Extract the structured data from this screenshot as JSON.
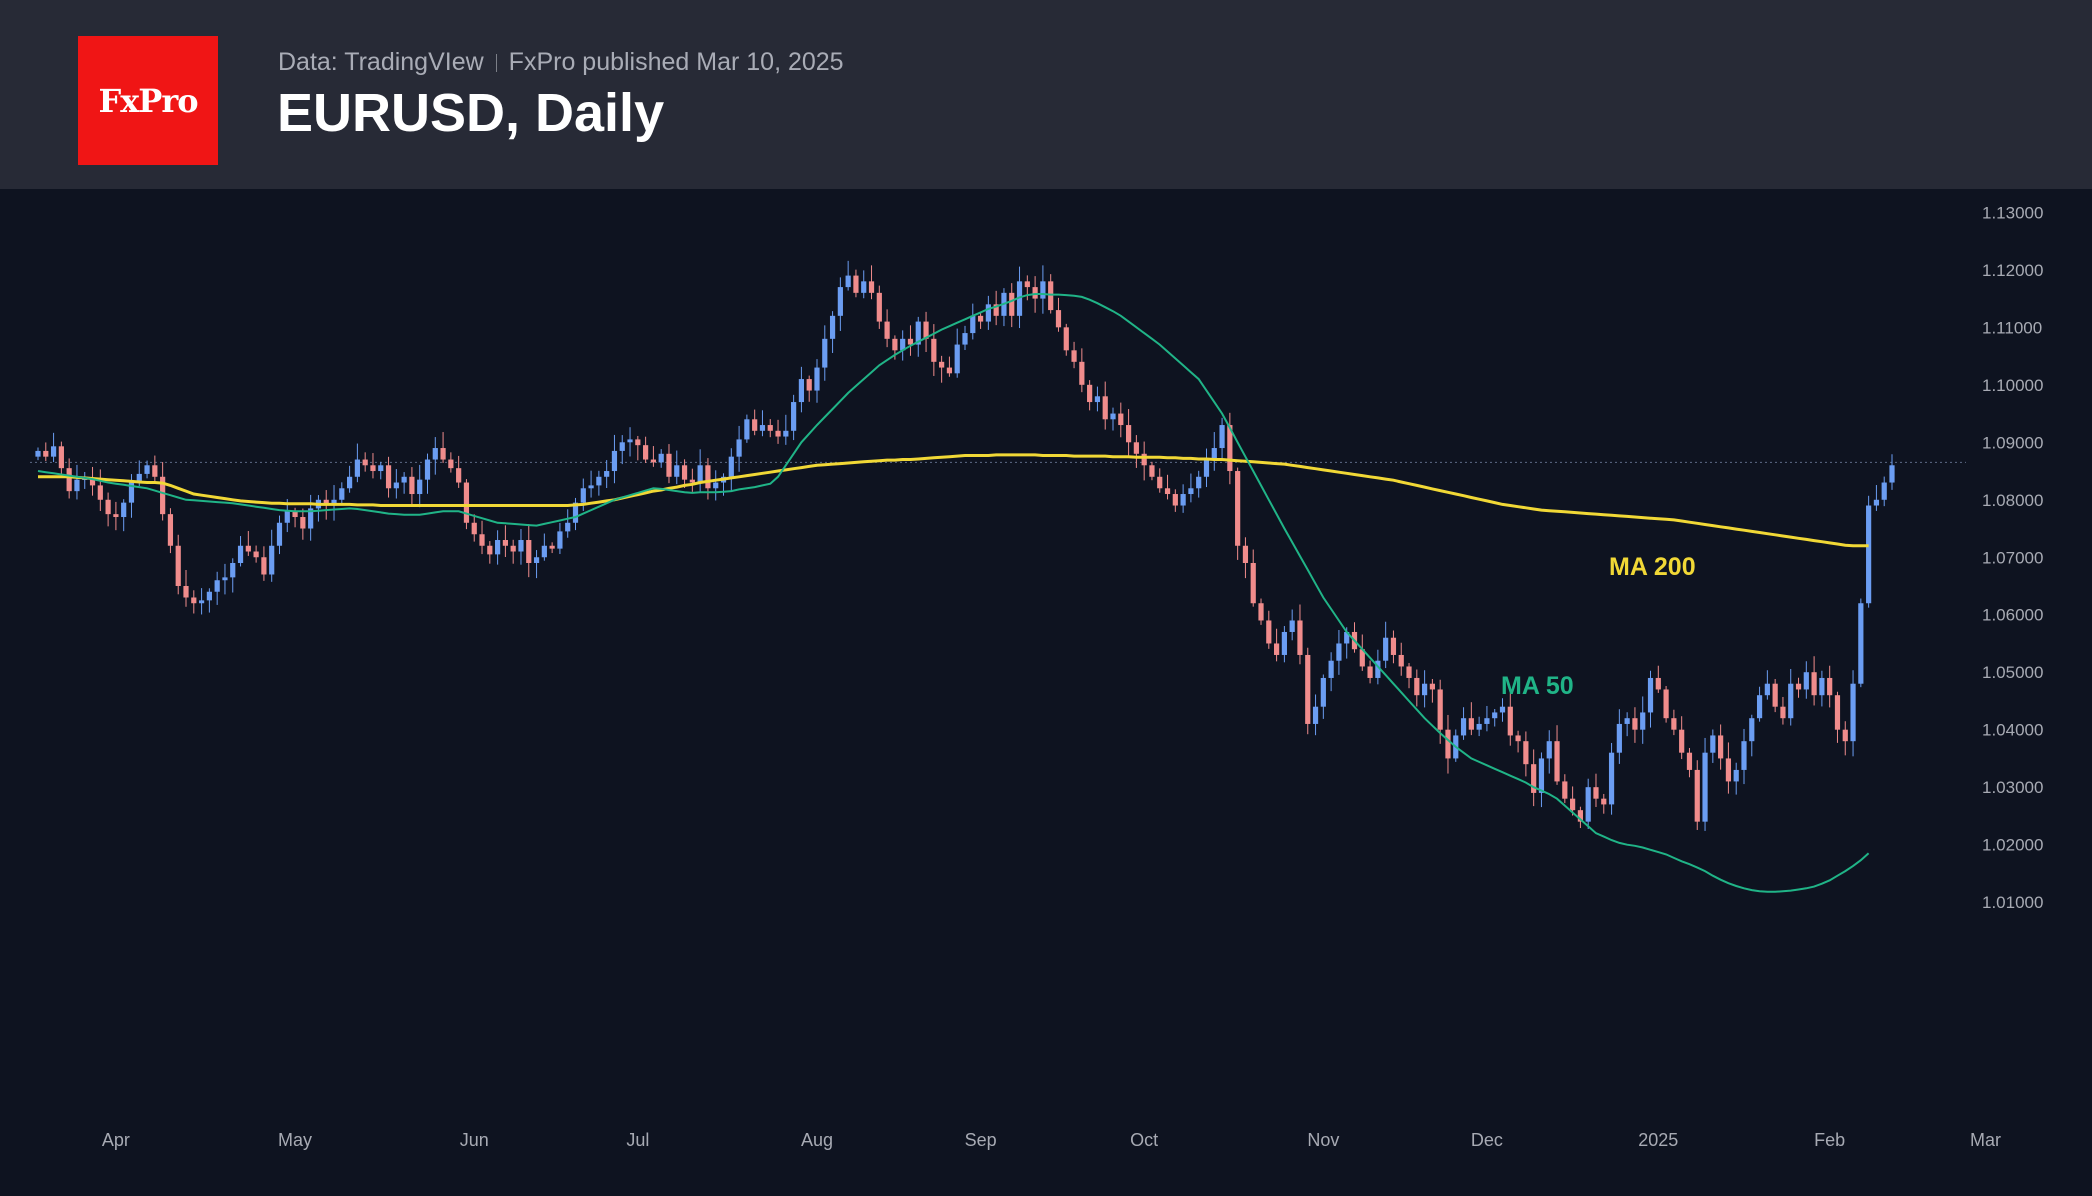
{
  "header": {
    "logo_text": "FxPro",
    "data_source": "Data: TradingVIew",
    "published": "FxPro published Mar 10, 2025",
    "title": "EURUSD, Daily"
  },
  "colors": {
    "up": "#6b9df2",
    "down": "#f08c8c",
    "ma200": "#f1d836",
    "ma50": "#20b487",
    "logo": "#f01515"
  },
  "chart_data": {
    "type": "candlestick",
    "title": "EURUSD, Daily",
    "y_ticks": [
      "1.13000",
      "1.12000",
      "1.11000",
      "1.10000",
      "1.09000",
      "1.08000",
      "1.07000",
      "1.06000",
      "1.05000",
      "1.04000",
      "1.03000",
      "1.02000",
      "1.01000"
    ],
    "ylim": [
      1.0055,
      1.1325
    ],
    "x_ticks": [
      "Apr",
      "May",
      "Jun",
      "Jul",
      "Aug",
      "Sep",
      "Oct",
      "Nov",
      "Dec",
      "2025",
      "Feb",
      "Mar"
    ],
    "x_tick_index": [
      10,
      33,
      56,
      77,
      100,
      121,
      142,
      165,
      186,
      208,
      230,
      250
    ],
    "last_price_line": 1.0865,
    "series_labels": {
      "ma200": "MA 200",
      "ma50": "MA 50"
    },
    "close": [
      1.0885,
      1.0875,
      1.0893,
      1.0855,
      1.0815,
      1.0835,
      1.0838,
      1.0825,
      1.08,
      1.0775,
      1.077,
      1.0795,
      1.083,
      1.0845,
      1.086,
      1.084,
      1.0775,
      1.072,
      1.065,
      1.063,
      1.062,
      1.0625,
      1.064,
      1.066,
      1.0665,
      1.069,
      1.072,
      1.071,
      1.07,
      1.067,
      1.072,
      1.076,
      1.078,
      1.077,
      1.075,
      1.0785,
      1.08,
      1.079,
      1.08,
      1.082,
      1.084,
      1.087,
      1.086,
      1.085,
      1.086,
      1.082,
      1.083,
      1.084,
      1.081,
      1.0835,
      1.087,
      1.089,
      1.087,
      1.0855,
      1.083,
      1.076,
      1.074,
      1.072,
      1.0705,
      1.073,
      1.072,
      1.071,
      1.073,
      1.069,
      1.07,
      1.072,
      1.0715,
      1.0745,
      1.076,
      1.0795,
      1.082,
      1.0825,
      1.084,
      1.085,
      1.0885,
      1.09,
      1.0905,
      1.0895,
      1.087,
      1.0865,
      1.088,
      1.084,
      1.086,
      1.0835,
      1.083,
      1.086,
      1.082,
      1.083,
      1.084,
      1.0875,
      1.0905,
      1.094,
      1.092,
      1.093,
      1.092,
      1.091,
      1.092,
      1.097,
      1.101,
      1.099,
      1.103,
      1.108,
      1.112,
      1.117,
      1.119,
      1.116,
      1.118,
      1.116,
      1.111,
      1.108,
      1.106,
      1.108,
      1.107,
      1.111,
      1.108,
      1.104,
      1.103,
      1.102,
      1.107,
      1.109,
      1.112,
      1.111,
      1.114,
      1.112,
      1.116,
      1.112,
      1.118,
      1.117,
      1.115,
      1.118,
      1.113,
      1.11,
      1.106,
      1.104,
      1.1,
      1.097,
      1.098,
      1.094,
      1.095,
      1.093,
      1.09,
      1.088,
      1.086,
      1.084,
      1.082,
      1.081,
      1.079,
      1.081,
      1.082,
      1.084,
      1.087,
      1.089,
      1.093,
      1.085,
      1.072,
      1.069,
      1.062,
      1.059,
      1.055,
      1.053,
      1.057,
      1.059,
      1.053,
      1.041,
      1.044,
      1.049,
      1.052,
      1.055,
      1.057,
      1.054,
      1.051,
      1.049,
      1.052,
      1.056,
      1.053,
      1.051,
      1.049,
      1.046,
      1.048,
      1.047,
      1.04,
      1.035,
      1.039,
      1.042,
      1.04,
      1.041,
      1.042,
      1.043,
      1.044,
      1.039,
      1.038,
      1.034,
      1.029,
      1.035,
      1.038,
      1.031,
      1.028,
      1.026,
      1.024,
      1.03,
      1.028,
      1.027,
      1.036,
      1.041,
      1.042,
      1.04,
      1.043,
      1.049,
      1.047,
      1.042,
      1.04,
      1.036,
      1.033,
      1.024,
      1.036,
      1.039,
      1.035,
      1.031,
      1.033,
      1.038,
      1.042,
      1.046,
      1.048,
      1.044,
      1.042,
      1.048,
      1.047,
      1.05,
      1.046,
      1.049,
      1.046,
      1.04,
      1.038,
      1.048,
      1.062,
      1.079,
      1.08,
      1.083,
      1.086
    ],
    "ma200": [
      1.084,
      1.084,
      1.084,
      1.084,
      1.084,
      1.0839,
      1.0838,
      1.0837,
      1.0836,
      1.0835,
      1.0834,
      1.0833,
      1.0832,
      1.0831,
      1.083,
      1.083,
      1.0829,
      1.0825,
      1.082,
      1.0815,
      1.081,
      1.0808,
      1.0806,
      1.0804,
      1.0802,
      1.08,
      1.0798,
      1.0797,
      1.0796,
      1.0795,
      1.0794,
      1.0794,
      1.0793,
      1.0793,
      1.0793,
      1.0793,
      1.0792,
      1.0792,
      1.0792,
      1.0792,
      1.0792,
      1.0791,
      1.0791,
      1.0791,
      1.079,
      1.079,
      1.079,
      1.079,
      1.079,
      1.079,
      1.079,
      1.079,
      1.079,
      1.079,
      1.079,
      1.079,
      1.079,
      1.079,
      1.079,
      1.079,
      1.079,
      1.079,
      1.079,
      1.079,
      1.079,
      1.079,
      1.079,
      1.079,
      1.079,
      1.0791,
      1.0792,
      1.0794,
      1.0796,
      1.0798,
      1.08,
      1.0803,
      1.0806,
      1.0809,
      1.0812,
      1.0815,
      1.0817,
      1.082,
      1.0822,
      1.0825,
      1.0827,
      1.083,
      1.0832,
      1.0834,
      1.0836,
      1.0838,
      1.084,
      1.0842,
      1.0844,
      1.0846,
      1.0848,
      1.085,
      1.0852,
      1.0854,
      1.0856,
      1.0858,
      1.086,
      1.0861,
      1.0862,
      1.0863,
      1.0864,
      1.0865,
      1.0866,
      1.0867,
      1.0868,
      1.0869,
      1.0869,
      1.087,
      1.087,
      1.0871,
      1.0872,
      1.0873,
      1.0874,
      1.0875,
      1.0876,
      1.0877,
      1.0877,
      1.0877,
      1.0877,
      1.0878,
      1.0878,
      1.0878,
      1.0878,
      1.0878,
      1.0878,
      1.0877,
      1.0877,
      1.0877,
      1.0877,
      1.0876,
      1.0876,
      1.0876,
      1.0876,
      1.0876,
      1.0875,
      1.0875,
      1.0875,
      1.0874,
      1.0874,
      1.0874,
      1.0874,
      1.0873,
      1.0873,
      1.0872,
      1.0872,
      1.0871,
      1.0871,
      1.087,
      1.087,
      1.0869,
      1.0868,
      1.0867,
      1.0866,
      1.0865,
      1.0864,
      1.0863,
      1.0862,
      1.086,
      1.0858,
      1.0856,
      1.0854,
      1.0852,
      1.085,
      1.0848,
      1.0846,
      1.0844,
      1.0842,
      1.084,
      1.0838,
      1.0836,
      1.0834,
      1.0831,
      1.0828,
      1.0825,
      1.0822,
      1.0819,
      1.0816,
      1.0813,
      1.081,
      1.0807,
      1.0804,
      1.0801,
      1.0798,
      1.0795,
      1.0792,
      1.079,
      1.0788,
      1.0786,
      1.0784,
      1.0782,
      1.0781,
      1.078,
      1.0779,
      1.0778,
      1.0777,
      1.0776,
      1.0775,
      1.0774,
      1.0773,
      1.0772,
      1.0771,
      1.077,
      1.0769,
      1.0768,
      1.0767,
      1.0766,
      1.0765,
      1.0763,
      1.0761,
      1.0759,
      1.0757,
      1.0755,
      1.0753,
      1.0751,
      1.0749,
      1.0747,
      1.0745,
      1.0743,
      1.0741,
      1.0739,
      1.0737,
      1.0735,
      1.0733,
      1.0731,
      1.0729,
      1.0727,
      1.0725,
      1.0723,
      1.0721,
      1.072,
      1.072,
      1.072
    ],
    "ma50": [
      1.085,
      1.0848,
      1.0846,
      1.0844,
      1.0842,
      1.084,
      1.0838,
      1.0836,
      1.0833,
      1.083,
      1.0828,
      1.0826,
      1.0824,
      1.0822,
      1.082,
      1.0816,
      1.0812,
      1.0808,
      1.0804,
      1.08,
      1.0799,
      1.0798,
      1.0797,
      1.0796,
      1.0795,
      1.0794,
      1.0792,
      1.079,
      1.0788,
      1.0786,
      1.0784,
      1.0782,
      1.0781,
      1.078,
      1.078,
      1.078,
      1.0781,
      1.0782,
      1.0783,
      1.0784,
      1.0785,
      1.0784,
      1.0782,
      1.078,
      1.0778,
      1.0776,
      1.0775,
      1.0774,
      1.0774,
      1.0774,
      1.0776,
      1.0778,
      1.078,
      1.078,
      1.078,
      1.0776,
      1.0772,
      1.0768,
      1.0764,
      1.076,
      1.0759,
      1.0758,
      1.0757,
      1.0756,
      1.0755,
      1.0758,
      1.0761,
      1.0764,
      1.0767,
      1.077,
      1.0776,
      1.0782,
      1.0788,
      1.0794,
      1.08,
      1.0804,
      1.0808,
      1.0812,
      1.0816,
      1.082,
      1.0819,
      1.0817,
      1.0815,
      1.0813,
      1.0812,
      1.0813,
      1.0813,
      1.0813,
      1.0814,
      1.0815,
      1.0818,
      1.082,
      1.0822,
      1.0825,
      1.0828,
      1.084,
      1.086,
      1.088,
      1.09,
      1.0915,
      1.093,
      1.0944,
      1.0958,
      1.0972,
      1.0986,
      1.0998,
      1.101,
      1.1022,
      1.1034,
      1.1043,
      1.1052,
      1.106,
      1.1068,
      1.1075,
      1.1082,
      1.1089,
      1.1096,
      1.1102,
      1.1108,
      1.1114,
      1.112,
      1.1126,
      1.1132,
      1.1136,
      1.1141,
      1.1146,
      1.1152,
      1.1156,
      1.1158,
      1.1158,
      1.1157,
      1.1157,
      1.1156,
      1.1155,
      1.1153,
      1.1148,
      1.1142,
      1.1135,
      1.1128,
      1.112,
      1.111,
      1.11,
      1.109,
      1.108,
      1.107,
      1.1058,
      1.1046,
      1.1034,
      1.1022,
      1.101,
      1.099,
      1.097,
      1.095,
      1.0925,
      1.09,
      1.0875,
      1.085,
      1.0825,
      1.08,
      1.0775,
      1.075,
      1.0726,
      1.0702,
      1.0678,
      1.0654,
      1.063,
      1.061,
      1.059,
      1.057,
      1.0555,
      1.054,
      1.0525,
      1.051,
      1.0495,
      1.048,
      1.0465,
      1.045,
      1.0435,
      1.042,
      1.0407,
      1.0394,
      1.0382,
      1.037,
      1.036,
      1.035,
      1.0344,
      1.0338,
      1.0332,
      1.0326,
      1.032,
      1.0314,
      1.0308,
      1.03,
      1.0294,
      1.0288,
      1.028,
      1.0268,
      1.0256,
      1.0244,
      1.0232,
      1.022,
      1.0214,
      1.0208,
      1.0203,
      1.02,
      1.0198,
      1.0195,
      1.0191,
      1.0187,
      1.0183,
      1.0177,
      1.0171,
      1.0166,
      1.016,
      1.0154,
      1.0146,
      1.0139,
      1.0133,
      1.0128,
      1.0124,
      1.0121,
      1.0119,
      1.0118,
      1.0118,
      1.0119,
      1.012,
      1.0122,
      1.0124,
      1.0127,
      1.0132,
      1.0138,
      1.0146,
      1.0154,
      1.0163,
      1.0173,
      1.0185
    ]
  }
}
